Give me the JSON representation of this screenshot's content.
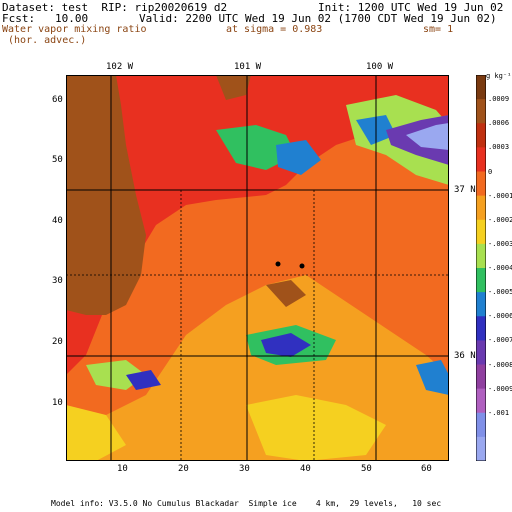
{
  "header": {
    "dataset": "Dataset: test  RIP: rip20020619 d2",
    "init": "Init: 1200 UTC Wed 19 Jun 02",
    "fcst": "Fcst:   10.00",
    "valid": "Valid: 2200 UTC Wed 19 Jun 02 (1700 CDT Wed 19 Jun 02)",
    "field_line1": "Water vapor mixing ratio",
    "field_line2": " (hor. advec.)",
    "sigma": "at sigma = 0.983",
    "sm": "sm= 1"
  },
  "top_labels": [
    "102 W",
    "101 W",
    "100 W"
  ],
  "right_labels": [
    "37 N",
    "36 N"
  ],
  "x_ticks": [
    "10",
    "20",
    "30",
    "40",
    "50",
    "60"
  ],
  "y_ticks": [
    "60",
    "50",
    "40",
    "30",
    "20",
    "10"
  ],
  "colorbar": {
    "unit": "g kg⁻¹",
    "labels": [
      ".0009",
      ".0006",
      ".0003",
      "0",
      "-.0001",
      "-.0002",
      "-.0003",
      "-.0004",
      "-.0005",
      "-.0006",
      "-.0007",
      "-.0008",
      "-.0009",
      "-.001"
    ],
    "colors": [
      "#7a3a10",
      "#a0521a",
      "#c03010",
      "#e83020",
      "#f26a20",
      "#f5a020",
      "#f5d020",
      "#a8e050",
      "#30c060",
      "#2080d0",
      "#3030c0",
      "#6a3ab0",
      "#9040a0",
      "#b060c0",
      "#8090e8",
      "#9aa8f0"
    ]
  },
  "footer": "Model info: V3.5.0 No Cumulus Blackadar  Simple ice    4 km,  29 levels,   10 sec"
}
